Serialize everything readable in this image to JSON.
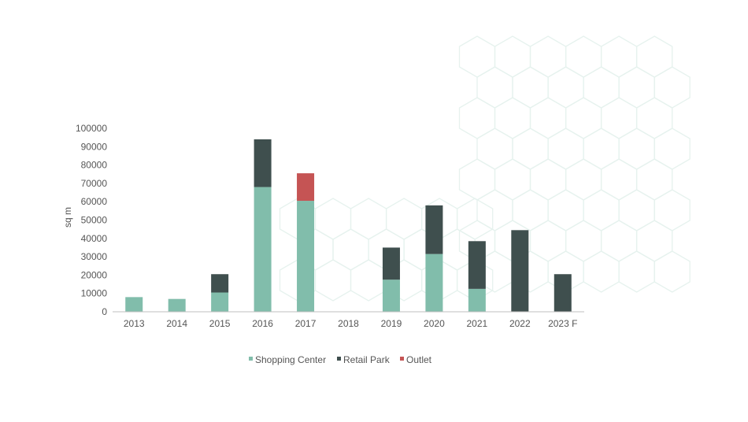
{
  "colors": {
    "shopping_center": "#81bdab",
    "retail_park": "#3f4f4e",
    "outlet": "#c55454",
    "axis": "#bfbfbf",
    "background_pattern": "#e6f2ee"
  },
  "chart_data": {
    "type": "bar",
    "stacked": true,
    "title": "",
    "xlabel": "",
    "ylabel": "sq m",
    "ylim": [
      0,
      100000
    ],
    "yticks": [
      0,
      10000,
      20000,
      30000,
      40000,
      50000,
      60000,
      70000,
      80000,
      90000,
      100000
    ],
    "categories": [
      "2013",
      "2014",
      "2015",
      "2016",
      "2017",
      "2018",
      "2019",
      "2020",
      "2021",
      "2022",
      "2023 F"
    ],
    "series": [
      {
        "name": "Shopping Center",
        "color": "#81bdab",
        "values": [
          8000,
          7000,
          10500,
          68000,
          60500,
          0,
          17500,
          31500,
          12500,
          0,
          0
        ]
      },
      {
        "name": "Retail Park",
        "color": "#3f4f4e",
        "values": [
          0,
          0,
          10000,
          26000,
          0,
          0,
          17500,
          26500,
          26000,
          44500,
          20500
        ]
      },
      {
        "name": "Outlet",
        "color": "#c55454",
        "values": [
          0,
          0,
          0,
          0,
          15000,
          0,
          0,
          0,
          0,
          0,
          0
        ]
      }
    ],
    "grid": false,
    "legend_position": "bottom"
  }
}
